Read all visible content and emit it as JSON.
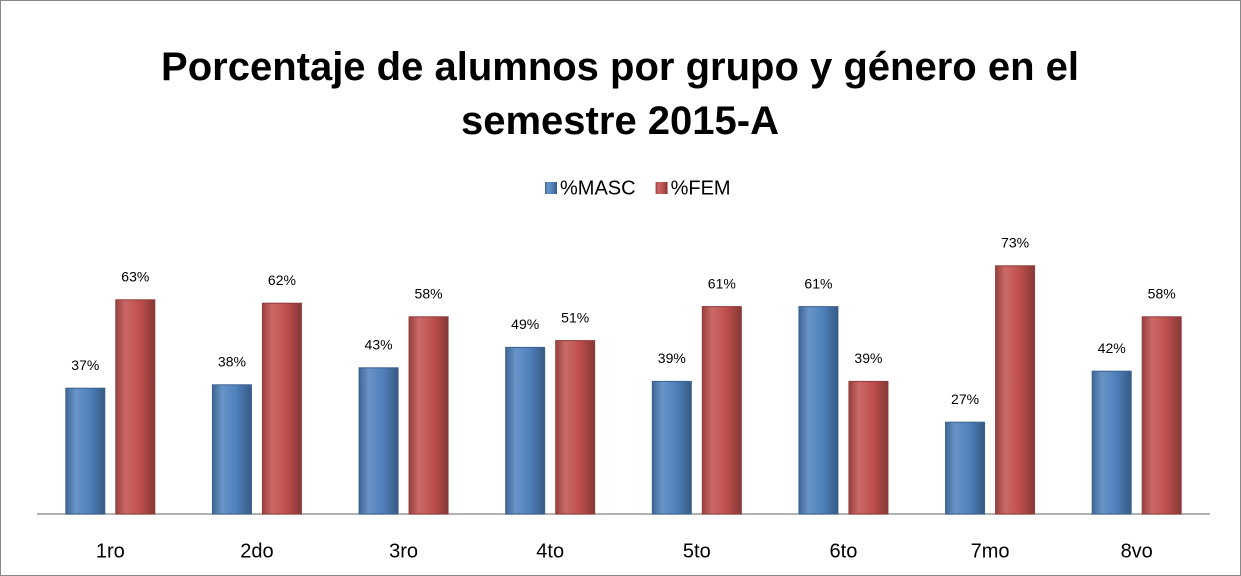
{
  "chart_data": {
    "type": "bar",
    "title": "Porcentaje de alumnos por grupo y género en el semestre 2015-A",
    "categories": [
      "1ro",
      "2do",
      "3ro",
      "4to",
      "5to",
      "6to",
      "7mo",
      "8vo"
    ],
    "series": [
      {
        "name": "%MASC",
        "color": "#4f81bd",
        "values": [
          37,
          38,
          43,
          49,
          39,
          61,
          27,
          42
        ],
        "value_labels": [
          "37%",
          "38%",
          "43%",
          "49%",
          "39%",
          "61%",
          "27%",
          "42%"
        ]
      },
      {
        "name": "%FEM",
        "color": "#c0504d",
        "values": [
          63,
          62,
          58,
          51,
          61,
          39,
          73,
          58
        ],
        "value_labels": [
          "63%",
          "62%",
          "58%",
          "51%",
          "61%",
          "39%",
          "73%",
          "58%"
        ]
      }
    ],
    "legend": "top"
  }
}
